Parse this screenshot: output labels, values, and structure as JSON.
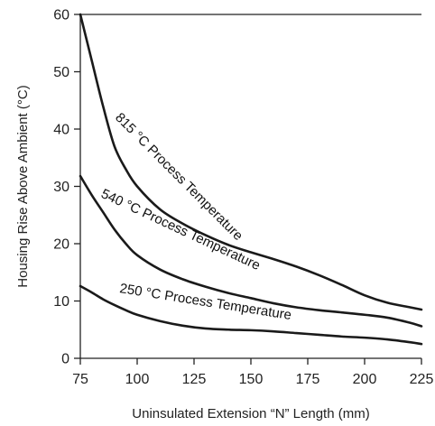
{
  "chart_data": {
    "type": "line",
    "title": "",
    "xlabel": "Uninsulated Extension “N” Length (mm)",
    "ylabel": "Housing Rise Above Ambient (°C)",
    "xlim": [
      75,
      225
    ],
    "ylim": [
      0,
      60
    ],
    "x_ticks": [
      75,
      100,
      125,
      150,
      175,
      200,
      225
    ],
    "y_ticks": [
      0,
      10,
      20,
      30,
      40,
      50,
      60
    ],
    "grid": false,
    "legend": "none",
    "series": [
      {
        "name": "815 °C Process Temperature",
        "x": [
          75,
          80,
          85,
          90,
          95,
          100,
          110,
          120,
          130,
          140,
          150,
          160,
          170,
          180,
          190,
          200,
          210,
          220,
          225
        ],
        "y": [
          60,
          52,
          44,
          37,
          33,
          30,
          26,
          23.5,
          21.5,
          19.8,
          18.5,
          17.3,
          16,
          14.5,
          12.8,
          11,
          9.7,
          8.9,
          8.5
        ]
      },
      {
        "name": "540 °C Process Temperature",
        "x": [
          75,
          80,
          85,
          90,
          95,
          100,
          110,
          120,
          130,
          140,
          150,
          160,
          170,
          180,
          190,
          200,
          210,
          220,
          225
        ],
        "y": [
          31.8,
          28.5,
          25.5,
          22.5,
          20,
          18,
          15.5,
          13.8,
          12.5,
          11.4,
          10.5,
          9.6,
          8.9,
          8.4,
          8,
          7.6,
          7.1,
          6.2,
          5.6
        ]
      },
      {
        "name": "250 °C Process Temperature",
        "x": [
          75,
          80,
          85,
          90,
          95,
          100,
          110,
          120,
          130,
          140,
          150,
          160,
          170,
          180,
          190,
          200,
          210,
          220,
          225
        ],
        "y": [
          12.6,
          11.5,
          10.3,
          9.3,
          8.4,
          7.6,
          6.5,
          5.7,
          5.2,
          5,
          4.9,
          4.7,
          4.4,
          4.1,
          3.8,
          3.6,
          3.3,
          2.8,
          2.5
        ]
      }
    ],
    "annotations": [
      {
        "text": "815 °C Process Temperature"
      },
      {
        "text": "540 °C Process Temperature"
      },
      {
        "text": "250 °C Process Temperature"
      }
    ]
  }
}
